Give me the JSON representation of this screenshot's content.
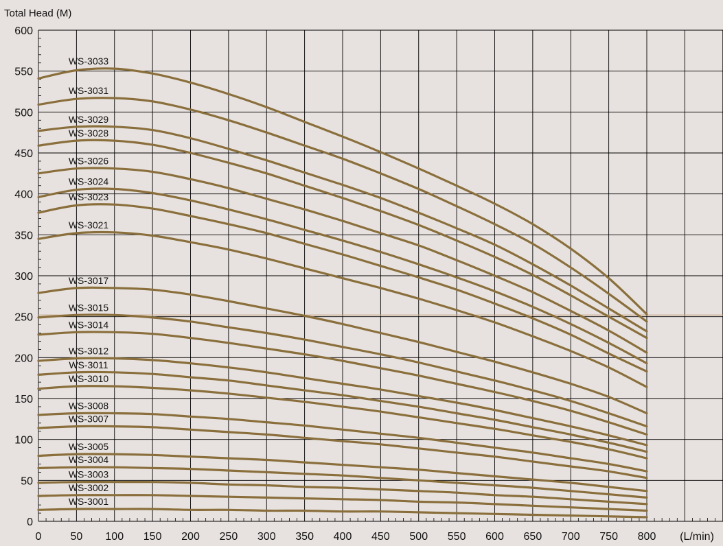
{
  "chart_data": {
    "type": "line",
    "ylabel": "Total Head (M)",
    "xlabel": "",
    "x_unit_label": "(L/min)",
    "xlim": [
      0,
      800
    ],
    "ylim": [
      0,
      600
    ],
    "x_ticks": [
      "0",
      "50",
      "100",
      "150",
      "200",
      "250",
      "300",
      "350",
      "400",
      "450",
      "500",
      "550",
      "600",
      "650",
      "700",
      "750",
      "800"
    ],
    "y_ticks": [
      "0",
      "50",
      "100",
      "150",
      "200",
      "250",
      "300",
      "350",
      "400",
      "450",
      "500",
      "550",
      "600"
    ],
    "grid": true,
    "reference_line_y": 252,
    "x": [
      0,
      50,
      100,
      150,
      200,
      250,
      300,
      350,
      400,
      450,
      500,
      550,
      600,
      650,
      700,
      750,
      800
    ],
    "series": [
      {
        "name": "WS-3033",
        "values": [
          541,
          551,
          553,
          547,
          536,
          522,
          506,
          488,
          470,
          451,
          431,
          410,
          388,
          363,
          333,
          297,
          253
        ]
      },
      {
        "name": "WS-3031",
        "values": [
          509,
          516,
          517,
          513,
          503,
          490,
          475,
          459,
          443,
          425,
          406,
          385,
          363,
          339,
          310,
          278,
          244
        ]
      },
      {
        "name": "WS-3029",
        "values": [
          477,
          482,
          482,
          478,
          468,
          455,
          441,
          426,
          411,
          395,
          377,
          358,
          338,
          314,
          288,
          260,
          232
        ]
      },
      {
        "name": "WS-3028",
        "values": [
          459,
          465,
          465,
          460,
          450,
          438,
          425,
          410,
          395,
          379,
          362,
          343,
          323,
          301,
          276,
          250,
          224
        ]
      },
      {
        "name": "WS-3026",
        "values": [
          425,
          431,
          431,
          427,
          418,
          407,
          394,
          381,
          367,
          352,
          337,
          319,
          300,
          280,
          257,
          233,
          206
        ]
      },
      {
        "name": "WS-3024",
        "values": [
          396,
          405,
          406,
          401,
          392,
          381,
          369,
          356,
          343,
          329,
          314,
          298,
          281,
          262,
          241,
          218,
          193
        ]
      },
      {
        "name": "WS-3023",
        "values": [
          377,
          386,
          387,
          382,
          373,
          363,
          352,
          339,
          326,
          312,
          298,
          283,
          266,
          248,
          228,
          205,
          183
        ]
      },
      {
        "name": "WS-3021",
        "values": [
          345,
          352,
          353,
          349,
          341,
          332,
          321,
          309,
          297,
          285,
          272,
          258,
          243,
          226,
          208,
          188,
          164
        ]
      },
      {
        "name": "WS-3017",
        "values": [
          279,
          285,
          285,
          283,
          277,
          269,
          260,
          251,
          241,
          230,
          219,
          207,
          195,
          182,
          168,
          152,
          132
        ]
      },
      {
        "name": "WS-3015",
        "values": [
          249,
          252,
          252,
          249,
          244,
          237,
          230,
          222,
          213,
          204,
          194,
          183,
          172,
          160,
          147,
          132,
          116
        ]
      },
      {
        "name": "WS-3014",
        "values": [
          228,
          231,
          231,
          229,
          224,
          218,
          211,
          204,
          196,
          187,
          178,
          168,
          158,
          147,
          135,
          121,
          106
        ]
      },
      {
        "name": "WS-3012",
        "values": [
          196,
          199,
          199,
          197,
          193,
          188,
          182,
          175,
          168,
          161,
          153,
          145,
          136,
          126,
          116,
          105,
          93
        ]
      },
      {
        "name": "WS-3011",
        "values": [
          179,
          182,
          182,
          180,
          176,
          172,
          166,
          160,
          154,
          147,
          140,
          132,
          124,
          115,
          106,
          96,
          85
        ]
      },
      {
        "name": "WS-3010",
        "values": [
          162,
          165,
          165,
          163,
          160,
          156,
          151,
          146,
          140,
          134,
          127,
          120,
          113,
          105,
          97,
          88,
          77
        ]
      },
      {
        "name": "WS-3008",
        "values": [
          130,
          132,
          132,
          131,
          128,
          125,
          121,
          117,
          112,
          107,
          102,
          96,
          90,
          84,
          77,
          70,
          61
        ]
      },
      {
        "name": "WS-3007",
        "values": [
          114,
          116,
          116,
          115,
          112,
          109,
          106,
          102,
          98,
          94,
          89,
          84,
          79,
          73,
          67,
          61,
          53
        ]
      },
      {
        "name": "WS-3005",
        "values": [
          80,
          82,
          82,
          81,
          79,
          77,
          75,
          72,
          69,
          66,
          63,
          59,
          55,
          51,
          47,
          42,
          37
        ]
      },
      {
        "name": "WS-3004",
        "values": [
          65,
          66,
          66,
          65,
          64,
          62,
          60,
          58,
          56,
          53,
          50,
          47,
          44,
          41,
          37,
          33,
          29
        ]
      },
      {
        "name": "WS-3003",
        "values": [
          47,
          48,
          48,
          48,
          47,
          45,
          44,
          42,
          41,
          39,
          37,
          35,
          32,
          30,
          27,
          24,
          21
        ]
      },
      {
        "name": "WS-3002",
        "values": [
          31,
          32,
          32,
          32,
          31,
          30,
          29,
          28,
          27,
          26,
          24,
          23,
          21,
          19,
          17,
          15,
          13
        ]
      },
      {
        "name": "WS-3001",
        "values": [
          14,
          15,
          15,
          15,
          14,
          14,
          13,
          13,
          12,
          12,
          11,
          10,
          9,
          8,
          7,
          6,
          5
        ]
      }
    ],
    "line_color": "#8a6f3c",
    "grid_color": "#000000",
    "background_color": "#e7e2df",
    "reference_line_color": "#c9a98a"
  }
}
